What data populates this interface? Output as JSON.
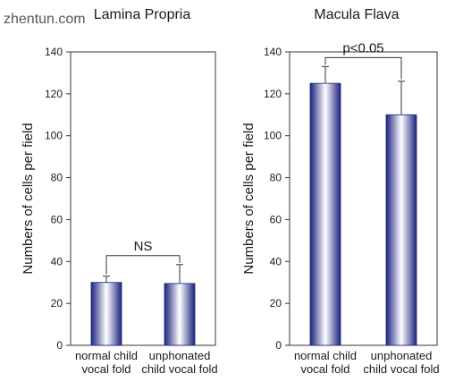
{
  "watermark": "zhentun.com",
  "colors": {
    "bar_edge": "#1a237e",
    "bar_mid": "#ffffff",
    "line": "#333333"
  },
  "chart_data": [
    {
      "type": "bar",
      "title": "Lamina Propria",
      "ylabel": "Numbers of cells per field",
      "ylim": [
        0,
        140
      ],
      "yticks": [
        0,
        20,
        40,
        60,
        80,
        100,
        120,
        140
      ],
      "categories": [
        [
          "normal child",
          "vocal fold"
        ],
        [
          "unphonated",
          "child vocal fold"
        ]
      ],
      "values": [
        30,
        29.5
      ],
      "errors": [
        3,
        9
      ],
      "significance": "NS"
    },
    {
      "type": "bar",
      "title": "Macula Flava",
      "ylabel": "Numbers of cells per field",
      "ylim": [
        0,
        140
      ],
      "yticks": [
        0,
        20,
        40,
        60,
        80,
        100,
        120,
        140
      ],
      "categories": [
        [
          "normal child",
          "vocal fold"
        ],
        [
          "unphonated",
          "child vocal fold"
        ]
      ],
      "values": [
        125,
        110
      ],
      "errors": [
        8,
        16
      ],
      "significance": "p<0.05"
    }
  ]
}
